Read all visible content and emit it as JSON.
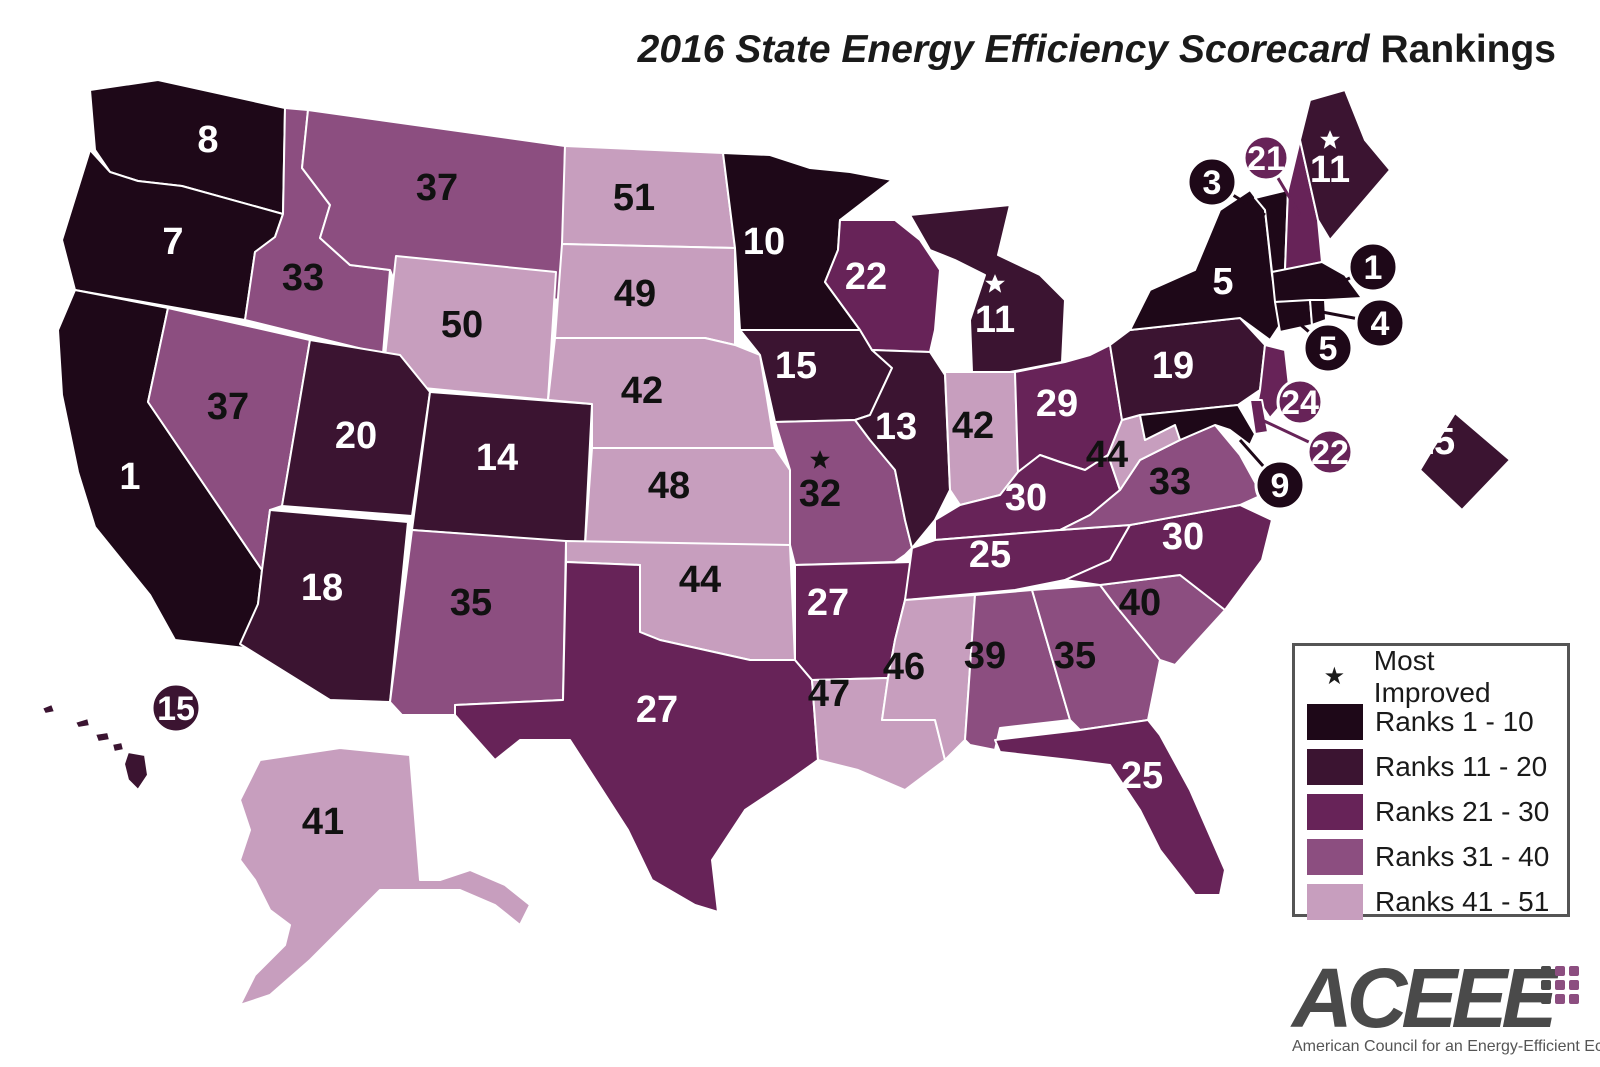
{
  "title": {
    "part1": "2016 State Energy Efficiency Scorecard",
    "part2": " Rankings"
  },
  "colors": {
    "tier1": "#1e0818",
    "tier2": "#3b1431",
    "tier3": "#672358",
    "tier4": "#8c4e80",
    "tier5": "#c79ebe",
    "border": "#ffffff"
  },
  "legend": {
    "most_improved": "Most Improved",
    "items": [
      {
        "label": "Ranks 1 - 10",
        "color": "#1e0818"
      },
      {
        "label": "Ranks 11 - 20",
        "color": "#3b1431"
      },
      {
        "label": "Ranks 21 - 30",
        "color": "#672358"
      },
      {
        "label": "Ranks 31 - 40",
        "color": "#8c4e80"
      },
      {
        "label": "Ranks 41 - 51",
        "color": "#c79ebe"
      }
    ]
  },
  "logo": {
    "name": "ACEEE",
    "tagline": "American Council for an Energy-Efficient Economy"
  },
  "states": [
    {
      "id": "WA",
      "rank": "8"
    },
    {
      "id": "OR",
      "rank": "7"
    },
    {
      "id": "CA",
      "rank": "1"
    },
    {
      "id": "ID",
      "rank": "33"
    },
    {
      "id": "NV",
      "rank": "37"
    },
    {
      "id": "MT",
      "rank": "37"
    },
    {
      "id": "WY",
      "rank": "50"
    },
    {
      "id": "UT",
      "rank": "20"
    },
    {
      "id": "AZ",
      "rank": "18"
    },
    {
      "id": "CO",
      "rank": "14"
    },
    {
      "id": "NM",
      "rank": "35"
    },
    {
      "id": "ND",
      "rank": "51"
    },
    {
      "id": "SD",
      "rank": "49"
    },
    {
      "id": "NE",
      "rank": "42"
    },
    {
      "id": "KS",
      "rank": "48"
    },
    {
      "id": "OK",
      "rank": "44"
    },
    {
      "id": "TX",
      "rank": "27"
    },
    {
      "id": "MN",
      "rank": "10"
    },
    {
      "id": "IA",
      "rank": "15"
    },
    {
      "id": "MO",
      "rank": "32"
    },
    {
      "id": "AR",
      "rank": "27"
    },
    {
      "id": "LA",
      "rank": "47"
    },
    {
      "id": "WI",
      "rank": "22"
    },
    {
      "id": "IL",
      "rank": "13"
    },
    {
      "id": "MI",
      "rank": "11"
    },
    {
      "id": "IN",
      "rank": "42"
    },
    {
      "id": "OH",
      "rank": "29"
    },
    {
      "id": "KY",
      "rank": "30"
    },
    {
      "id": "TN",
      "rank": "25"
    },
    {
      "id": "MS",
      "rank": "46"
    },
    {
      "id": "AL",
      "rank": "39"
    },
    {
      "id": "GA",
      "rank": "35"
    },
    {
      "id": "FL",
      "rank": "25"
    },
    {
      "id": "SC",
      "rank": "40"
    },
    {
      "id": "NC",
      "rank": "30"
    },
    {
      "id": "VA",
      "rank": "33"
    },
    {
      "id": "WV",
      "rank": "44"
    },
    {
      "id": "PA",
      "rank": "19"
    },
    {
      "id": "NY",
      "rank": "5"
    },
    {
      "id": "ME",
      "rank": "11"
    },
    {
      "id": "VT",
      "rank": "3"
    },
    {
      "id": "NH",
      "rank": "21"
    },
    {
      "id": "MA",
      "rank": "1"
    },
    {
      "id": "RI",
      "rank": "4"
    },
    {
      "id": "CT",
      "rank": "5"
    },
    {
      "id": "NJ",
      "rank": "24"
    },
    {
      "id": "DE",
      "rank": "22"
    },
    {
      "id": "MD",
      "rank": "9"
    },
    {
      "id": "DC",
      "rank": "15"
    },
    {
      "id": "AK",
      "rank": "41"
    },
    {
      "id": "HI",
      "rank": "15"
    }
  ]
}
